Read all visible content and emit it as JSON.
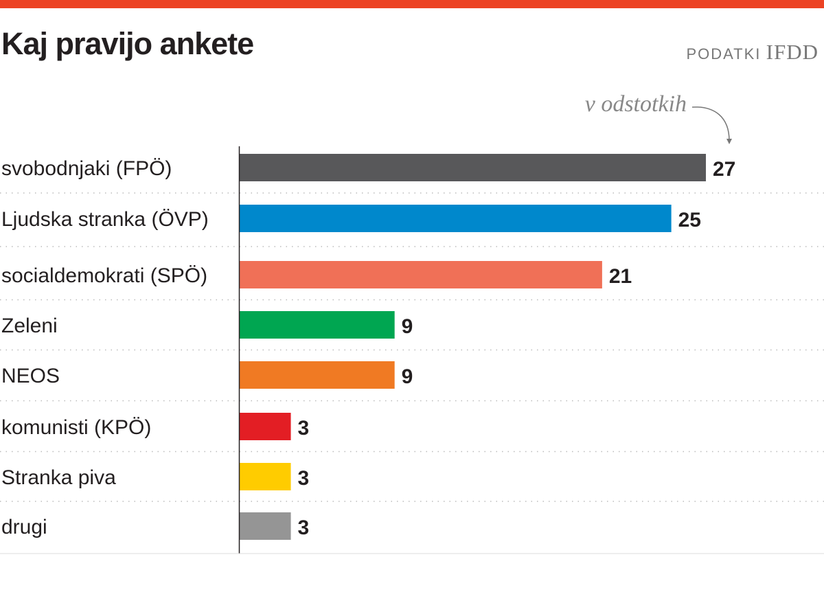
{
  "chart_data": {
    "type": "bar",
    "orientation": "horizontal",
    "title": "Kaj pravijo ankete",
    "source_label": "PODATKI",
    "source_org": "IFDD",
    "unit_note": "v odstotkih",
    "categories": [
      "svobodnjaki (FPÖ)",
      "Ljudska stranka (ÖVP)",
      "socialdemokrati (SPÖ)",
      "Zeleni",
      "NEOS",
      "komunisti (KPÖ)",
      "Stranka piva",
      "drugi"
    ],
    "values": [
      27,
      25,
      21,
      9,
      9,
      3,
      3,
      3
    ],
    "colors": [
      "#58585a",
      "#0088cc",
      "#f07057",
      "#00a651",
      "#f07a23",
      "#e31e24",
      "#ffcc00",
      "#959595"
    ],
    "xlim": [
      0,
      27
    ],
    "grid": false,
    "legend": "none"
  },
  "colors": {
    "accent": "#ec4324"
  }
}
